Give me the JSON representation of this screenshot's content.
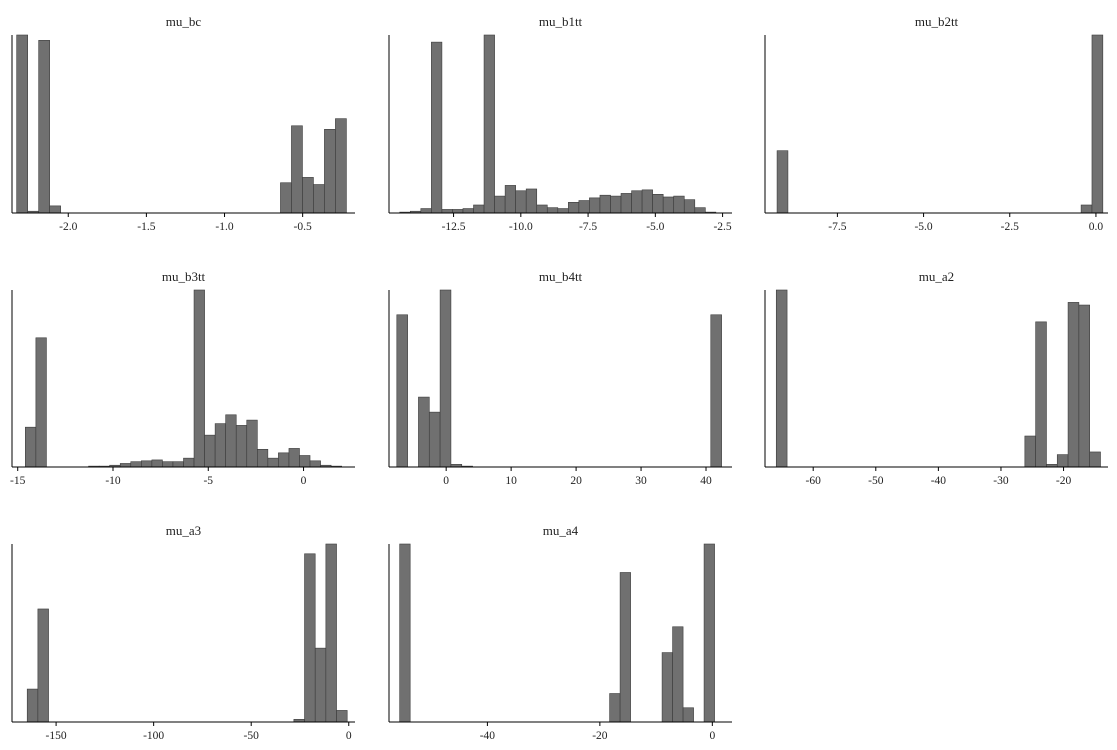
{
  "figure": {
    "bar_fill": "#707070",
    "bar_stroke": "#3a3a3a",
    "axis_color": "#000000",
    "text_color": "#222222"
  },
  "chart_data": [
    {
      "type": "bar",
      "title": "mu_bc",
      "xlim": [
        -2.36,
        -0.165
      ],
      "ticks": [
        -2.0,
        -1.5,
        -1.0,
        -0.5
      ],
      "tick_labels": [
        "-2.0",
        "-1.5",
        "-1.0",
        "-0.5"
      ],
      "bin_range": [
        -2.33,
        -0.22
      ],
      "heights": [
        1.0,
        0.01,
        0.97,
        0.04,
        0,
        0,
        0,
        0,
        0,
        0,
        0,
        0,
        0,
        0,
        0,
        0,
        0,
        0,
        0,
        0,
        0,
        0,
        0,
        0,
        0.17,
        0.49,
        0.2,
        0.16,
        0.47,
        0.53
      ]
    },
    {
      "type": "bar",
      "title": "mu_b1tt",
      "xlim": [
        -14.9,
        -2.15
      ],
      "ticks": [
        -12.5,
        -10.0,
        -7.5,
        -5.0,
        -2.5
      ],
      "tick_labels": [
        "-12.5",
        "-10.0",
        "-7.5",
        "-5.0",
        "-2.5"
      ],
      "bin_range": [
        -14.5,
        -2.75
      ],
      "heights": [
        0.005,
        0.01,
        0.025,
        0.96,
        0.02,
        0.02,
        0.025,
        0.045,
        1.0,
        0.095,
        0.155,
        0.125,
        0.135,
        0.045,
        0.03,
        0.025,
        0.06,
        0.07,
        0.085,
        0.1,
        0.095,
        0.11,
        0.125,
        0.13,
        0.105,
        0.09,
        0.095,
        0.075,
        0.03,
        0.005
      ]
    },
    {
      "type": "bar",
      "title": "mu_b2tt",
      "xlim": [
        -9.6,
        0.35
      ],
      "ticks": [
        -7.5,
        -5.0,
        -2.5,
        0.0
      ],
      "tick_labels": [
        "-7.5",
        "-5.0",
        "-2.5",
        "0.0"
      ],
      "bin_range": [
        -9.25,
        0.2
      ],
      "heights": [
        0.35,
        0,
        0,
        0,
        0,
        0,
        0,
        0,
        0,
        0,
        0,
        0,
        0,
        0,
        0,
        0,
        0,
        0,
        0,
        0,
        0,
        0,
        0,
        0,
        0,
        0,
        0,
        0,
        0.045,
        1.0
      ]
    },
    {
      "type": "bar",
      "title": "mu_b3tt",
      "xlim": [
        -15.3,
        2.7
      ],
      "ticks": [
        -15,
        -10,
        -5,
        0
      ],
      "tick_labels": [
        "-15",
        "-10",
        "-5",
        "0"
      ],
      "bin_range": [
        -14.6,
        2.0
      ],
      "heights": [
        0.225,
        0.73,
        0,
        0,
        0,
        0,
        0.005,
        0.005,
        0.01,
        0.02,
        0.03,
        0.035,
        0.04,
        0.03,
        0.03,
        0.05,
        1.0,
        0.18,
        0.245,
        0.295,
        0.235,
        0.265,
        0.1,
        0.05,
        0.08,
        0.105,
        0.065,
        0.035,
        0.01,
        0.005
      ]
    },
    {
      "type": "bar",
      "title": "mu_b4tt",
      "xlim": [
        -8.8,
        44.0
      ],
      "ticks": [
        0,
        10,
        20,
        30,
        40
      ],
      "tick_labels": [
        "0",
        "10",
        "20",
        "30",
        "40"
      ],
      "bin_range": [
        -7.6,
        42.4
      ],
      "heights": [
        0.86,
        0,
        0.395,
        0.31,
        1.0,
        0.015,
        0.005,
        0,
        0,
        0,
        0,
        0,
        0,
        0,
        0,
        0,
        0,
        0,
        0,
        0,
        0,
        0,
        0,
        0,
        0,
        0,
        0,
        0,
        0,
        0.86
      ]
    },
    {
      "type": "bar",
      "title": "mu_a2",
      "xlim": [
        -67.7,
        -12.9
      ],
      "ticks": [
        -60,
        -50,
        -40,
        -30,
        -20
      ],
      "tick_labels": [
        "-60",
        "-50",
        "-40",
        "-30",
        "-20"
      ],
      "bin_range": [
        -65.9,
        -14.1
      ],
      "heights": [
        1.0,
        0,
        0,
        0,
        0,
        0,
        0,
        0,
        0,
        0,
        0,
        0,
        0,
        0,
        0,
        0,
        0,
        0,
        0,
        0,
        0,
        0,
        0,
        0.175,
        0.82,
        0.015,
        0.07,
        0.93,
        0.915,
        0.085
      ]
    },
    {
      "type": "bar",
      "title": "mu_a3",
      "xlim": [
        -172.6,
        3.2
      ],
      "ticks": [
        -150,
        -100,
        -50,
        0
      ],
      "tick_labels": [
        "-150",
        "-100",
        "-50",
        "0"
      ],
      "bin_range": [
        -164.8,
        -0.8
      ],
      "heights": [
        0.185,
        0.635,
        0,
        0,
        0,
        0,
        0,
        0,
        0,
        0,
        0,
        0,
        0,
        0,
        0,
        0,
        0,
        0,
        0,
        0,
        0,
        0,
        0,
        0,
        0,
        0.015,
        0.945,
        0.415,
        1.0,
        0.065
      ]
    },
    {
      "type": "bar",
      "title": "mu_a4",
      "xlim": [
        -57.5,
        3.5
      ],
      "ticks": [
        -40,
        -20,
        0
      ],
      "tick_labels": [
        "-40",
        "-20",
        "0"
      ],
      "bin_range": [
        -55.6,
        0.4
      ],
      "heights": [
        1.0,
        0,
        0,
        0,
        0,
        0,
        0,
        0,
        0,
        0,
        0,
        0,
        0,
        0,
        0,
        0,
        0,
        0,
        0,
        0,
        0.16,
        0.84,
        0,
        0,
        0,
        0.39,
        0.535,
        0.08,
        0,
        1.0
      ]
    }
  ]
}
